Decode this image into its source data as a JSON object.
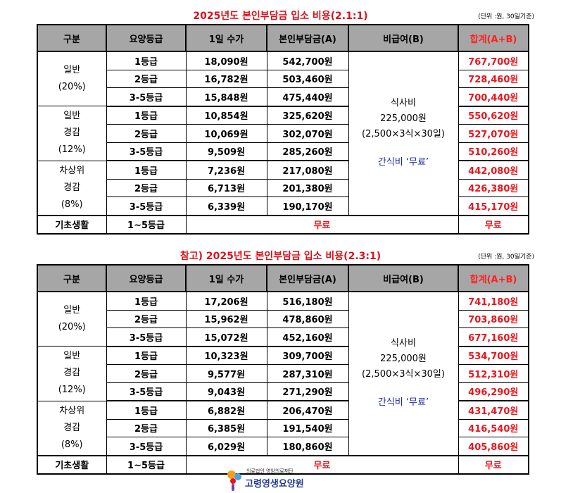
{
  "tables": [
    {
      "title": "2025년도 본인부담금 입소 비용(2.1:1)",
      "unit": "(단위 :원, 30일기준)",
      "headers": [
        "구분",
        "요양등급",
        "1일 수가",
        "본인부담금(A)",
        "비급여(B)",
        "합계(A+B)"
      ],
      "groups": [
        {
          "label": [
            "일반",
            "(20%)"
          ],
          "rows": [
            {
              "grade": "1등급",
              "daily": "18,090원",
              "self": "542,700원",
              "total": "767,700원"
            },
            {
              "grade": "2등급",
              "daily": "16,782원",
              "self": "503,460원",
              "total": "728,460원"
            },
            {
              "grade": "3-5등급",
              "daily": "15,848원",
              "self": "475,440원",
              "total": "700,440원"
            }
          ]
        },
        {
          "label": [
            "일반",
            "경감",
            "(12%)"
          ],
          "rows": [
            {
              "grade": "1등급",
              "daily": "10,854원",
              "self": "325,620원",
              "total": "550,620원"
            },
            {
              "grade": "2등급",
              "daily": "10,069원",
              "self": "302,070원",
              "total": "527,070원"
            },
            {
              "grade": "3-5등급",
              "daily": "9,509원",
              "self": "285,260원",
              "total": "510,260원"
            }
          ]
        },
        {
          "label": [
            "차상위",
            "경감",
            "(8%)"
          ],
          "rows": [
            {
              "grade": "1등급",
              "daily": "7,236원",
              "self": "217,080원",
              "total": "442,080원"
            },
            {
              "grade": "2등급",
              "daily": "6,713원",
              "self": "201,380원",
              "total": "426,380원"
            },
            {
              "grade": "3-5등급",
              "daily": "6,339원",
              "self": "190,170원",
              "total": "415,170원"
            }
          ]
        }
      ],
      "nonpay": {
        "meal": "식사비",
        "amount": "225,000원",
        "calc": "(2,500×3식×30일)",
        "snack": "간식비 ‘무료’"
      },
      "basic": {
        "label": "기초생활",
        "grade": "1~5등급",
        "free": "무료",
        "total": "무료"
      }
    },
    {
      "title": "참고) 2025년도 본인부담금 입소 비용(2.3:1)",
      "unit": "(단위 :원, 30일기준)",
      "headers": [
        "구분",
        "요양등급",
        "1일 수가",
        "본인부담금(A)",
        "비급여(B)",
        "합계(A+B)"
      ],
      "groups": [
        {
          "label": [
            "일반",
            "(20%)"
          ],
          "rows": [
            {
              "grade": "1등급",
              "daily": "17,206원",
              "self": "516,180원",
              "total": "741,180원"
            },
            {
              "grade": "2등급",
              "daily": "15,962원",
              "self": "478,860원",
              "total": "703,860원"
            },
            {
              "grade": "3-5등급",
              "daily": "15,072원",
              "self": "452,160원",
              "total": "677,160원"
            }
          ]
        },
        {
          "label": [
            "일반",
            "경감",
            "(12%)"
          ],
          "rows": [
            {
              "grade": "1등급",
              "daily": "10,323원",
              "self": "309,700원",
              "total": "534,700원"
            },
            {
              "grade": "2등급",
              "daily": "9,577원",
              "self": "287,310원",
              "total": "512,310원"
            },
            {
              "grade": "3-5등급",
              "daily": "9,043원",
              "self": "271,290원",
              "total": "496,290원"
            }
          ]
        },
        {
          "label": [
            "차상위",
            "경감",
            "(8%)"
          ],
          "rows": [
            {
              "grade": "1등급",
              "daily": "6,882원",
              "self": "206,470원",
              "total": "431,470원"
            },
            {
              "grade": "2등급",
              "daily": "6,385원",
              "self": "191,540원",
              "total": "416,540원"
            },
            {
              "grade": "3-5등급",
              "daily": "6,029원",
              "self": "180,860원",
              "total": "405,860원"
            }
          ]
        }
      ],
      "nonpay": {
        "meal": "식사비",
        "amount": "225,000원",
        "calc": "(2,500×3식×30일)",
        "snack": "간식비 ‘무료’"
      },
      "basic": {
        "label": "기초생활",
        "grade": "1~5등급",
        "free": "무료",
        "total": "무료"
      }
    }
  ],
  "logo": {
    "small": "의료법인 영암의료재단",
    "name": "고령영생요양원",
    "icon": "balloon-person-icon"
  },
  "colors": {
    "red": "#e8161d",
    "header_bg": "#a6a6a6",
    "snack_blue": "#1b2a9e"
  }
}
